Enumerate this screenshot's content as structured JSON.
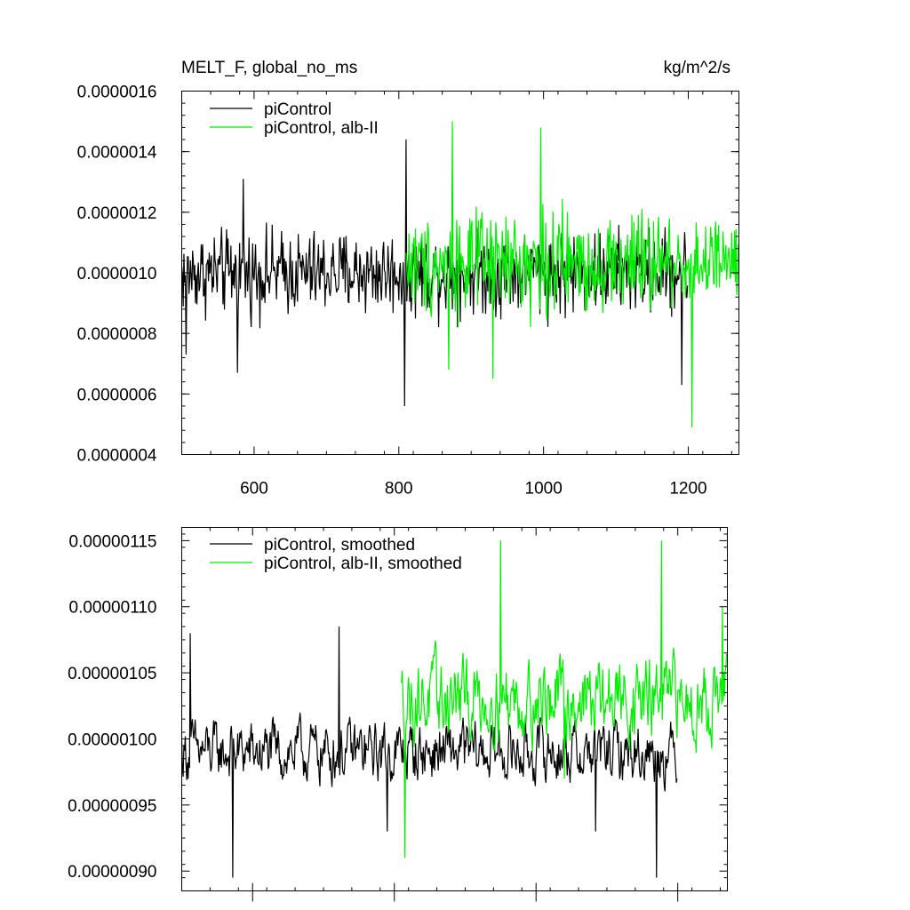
{
  "chart_data": [
    {
      "type": "line",
      "title": "MELT_F, global_no_ms",
      "units": "kg/m^2/s",
      "xlim": [
        500,
        1270
      ],
      "ylim": [
        4e-07,
        1.6e-06
      ],
      "xticks": [
        600,
        800,
        1000,
        1200
      ],
      "xtick_labels": [
        "600",
        "800",
        "1000",
        "1200"
      ],
      "yticks": [
        4e-07,
        6e-07,
        8e-07,
        1e-06,
        1.2e-06,
        1.4e-06,
        1.6e-06
      ],
      "ytick_labels": [
        "0.0000004",
        "0.0000006",
        "0.0000008",
        "0.0000010",
        "0.0000012",
        "0.0000014",
        "0.0000016"
      ],
      "legend_position": "top-left",
      "series": [
        {
          "name": "piControl",
          "color": "#000000",
          "x_range": [
            500,
            1199
          ],
          "mean": 1e-06,
          "noise": 1e-07,
          "extremes": [
            {
              "x": 506,
              "y": 7.3e-07
            },
            {
              "x": 577,
              "y": 6.7e-07
            },
            {
              "x": 585,
              "y": 1.31e-06
            },
            {
              "x": 808,
              "y": 5.6e-07
            },
            {
              "x": 810,
              "y": 1.44e-06
            },
            {
              "x": 1191,
              "y": 6.3e-07
            }
          ]
        },
        {
          "name": "piControl, alb-II",
          "color": "#00ee00",
          "x_range": [
            810,
            1269
          ],
          "mean": 1.03e-06,
          "noise": 1.2e-07,
          "extremes": [
            {
              "x": 874,
              "y": 1.5e-06
            },
            {
              "x": 996,
              "y": 1.48e-06
            },
            {
              "x": 930,
              "y": 6.5e-07
            },
            {
              "x": 869,
              "y": 6.8e-07
            },
            {
              "x": 1205,
              "y": 4.9e-07
            }
          ]
        }
      ]
    },
    {
      "type": "line",
      "title": "",
      "xlim": [
        500,
        1270
      ],
      "ylim": [
        8.85e-07,
        1.16e-06
      ],
      "xticks": [
        600,
        800,
        1000,
        1200
      ],
      "yticks": [
        9e-07,
        9.5e-07,
        1e-06,
        1.05e-06,
        1.1e-06,
        1.15e-06
      ],
      "ytick_labels": [
        "0.00000090",
        "0.00000095",
        "0.00000100",
        "0.00000105",
        "0.00000110",
        "0.00000115"
      ],
      "legend_position": "top-left",
      "series": [
        {
          "name": "piControl, smoothed",
          "color": "#000000",
          "x_range": [
            500,
            1199
          ],
          "mean": 9.9e-07,
          "noise": 3e-08,
          "extremes": [
            {
              "x": 512,
              "y": 1.08e-06
            },
            {
              "x": 572,
              "y": 8.95e-07
            },
            {
              "x": 722,
              "y": 1.085e-06
            },
            {
              "x": 790,
              "y": 9.3e-07
            },
            {
              "x": 1084,
              "y": 9.3e-07
            },
            {
              "x": 1170,
              "y": 8.95e-07
            }
          ]
        },
        {
          "name": "piControl, alb-II, smoothed",
          "color": "#00ee00",
          "x_range": [
            810,
            1269
          ],
          "mean": 1.03e-06,
          "noise": 4e-08,
          "extremes": [
            {
              "x": 815,
              "y": 9.1e-07
            },
            {
              "x": 950,
              "y": 1.15e-06
            },
            {
              "x": 1177,
              "y": 1.15e-06
            },
            {
              "x": 1263,
              "y": 1.1e-06
            },
            {
              "x": 1040,
              "y": 9.7e-07
            }
          ]
        }
      ]
    }
  ]
}
